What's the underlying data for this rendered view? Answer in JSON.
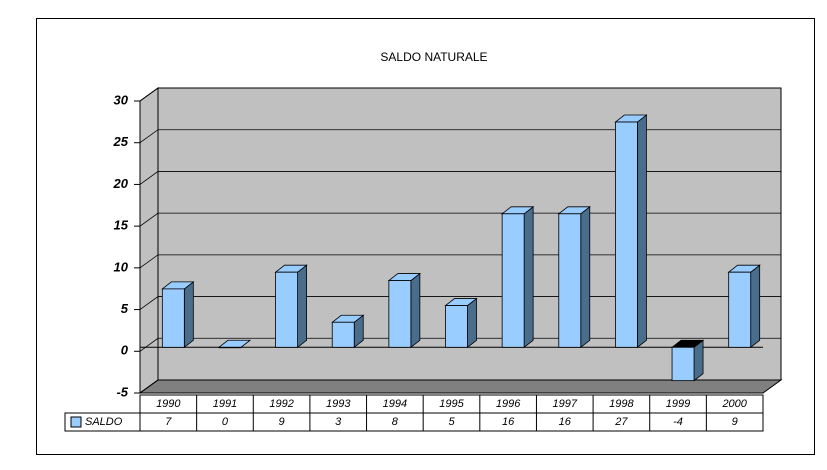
{
  "chart_data": {
    "type": "bar",
    "title": "SALDO NATURALE",
    "categories": [
      "1990",
      "1991",
      "1992",
      "1993",
      "1994",
      "1995",
      "1996",
      "1997",
      "1998",
      "1999",
      "2000"
    ],
    "series": [
      {
        "name": "SALDO",
        "color": "#99ccff",
        "values": [
          7,
          0,
          9,
          3,
          8,
          5,
          16,
          16,
          27,
          -4,
          9
        ]
      }
    ],
    "ylim": [
      -5,
      30
    ],
    "yticks": [
      -5,
      0,
      5,
      10,
      15,
      20,
      25,
      30
    ],
    "grid": true
  }
}
